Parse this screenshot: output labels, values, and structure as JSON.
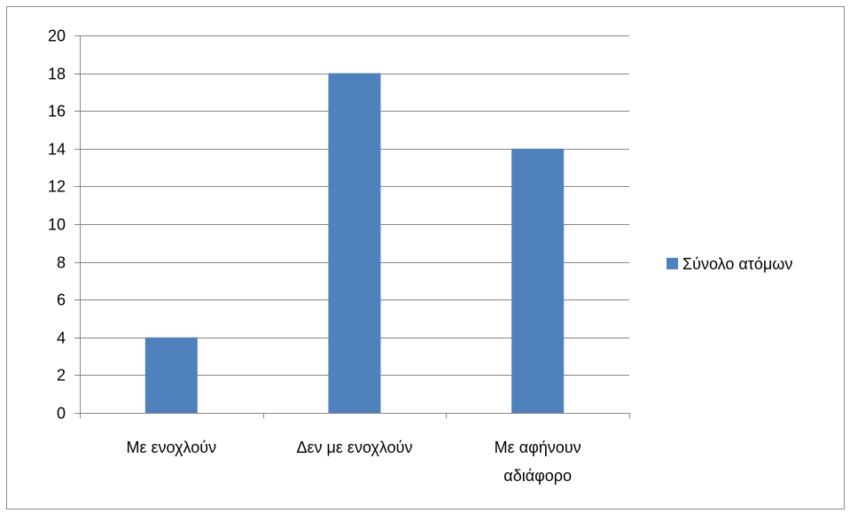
{
  "chart_data": {
    "type": "bar",
    "categories": [
      "Με ενοχλούν",
      "Δεν με ενοχλούν",
      "Με αφήνουν αδιάφορο"
    ],
    "category_lines": [
      [
        "Με ενοχλούν"
      ],
      [
        "Δεν με ενοχλούν"
      ],
      [
        "Με αφήνουν",
        "αδιάφορο"
      ]
    ],
    "series": [
      {
        "name": "Σύνολο ατόμων",
        "values": [
          4,
          18,
          14
        ],
        "color": "#4f81bd"
      }
    ],
    "ylim": [
      0,
      20
    ],
    "yticks": [
      0,
      2,
      4,
      6,
      8,
      10,
      12,
      14,
      16,
      18,
      20
    ],
    "grid": true,
    "gridline_color": "#868686",
    "axis_color": "#868686",
    "legend_position": "right"
  }
}
